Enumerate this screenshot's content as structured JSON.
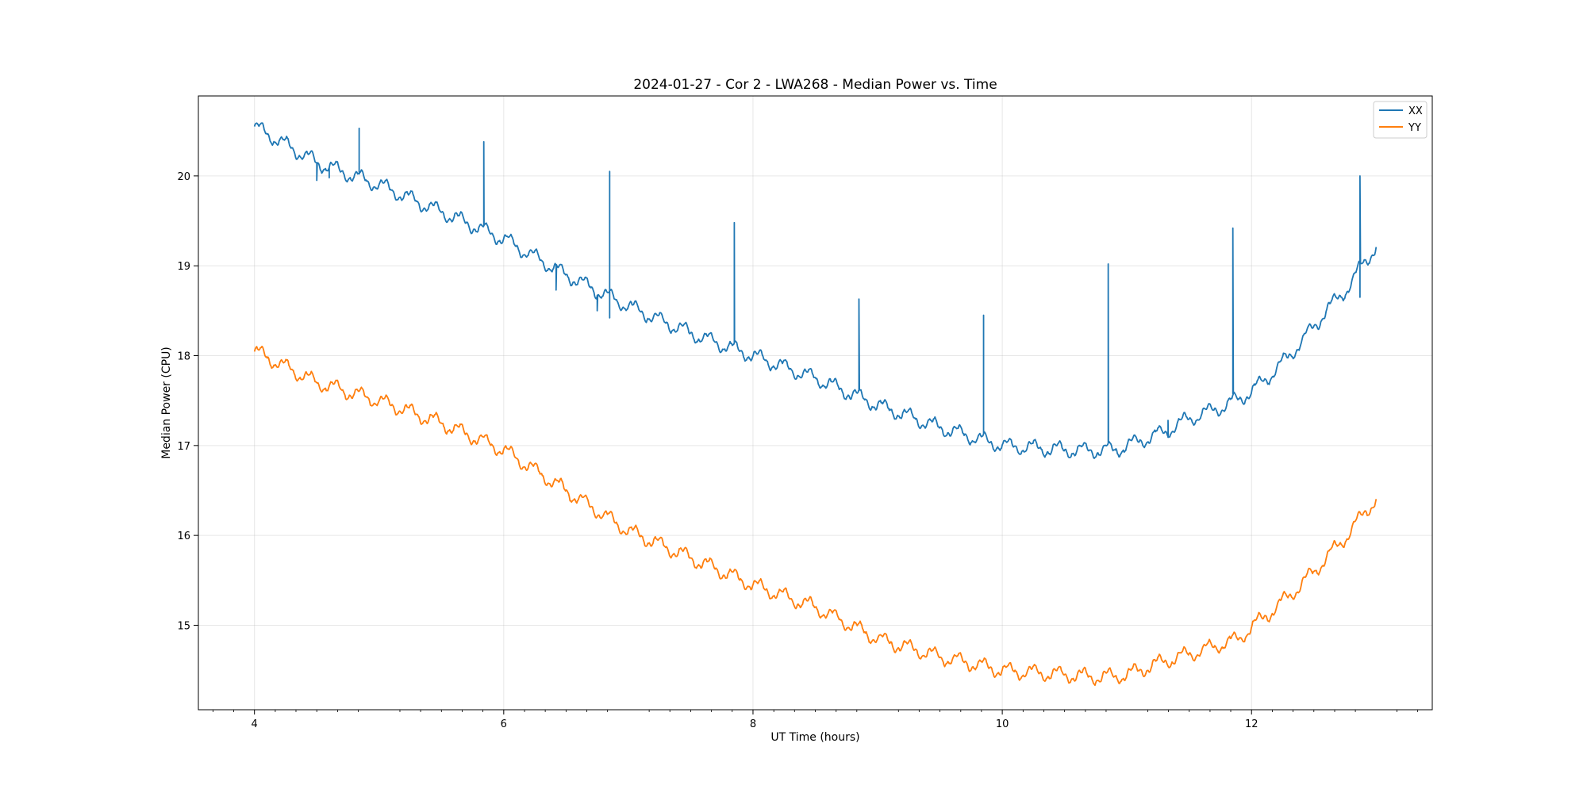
{
  "chart_data": {
    "type": "line",
    "title": "2024-01-27 - Cor 2 - LWA268 - Median Power vs. Time",
    "xlabel": "UT Time (hours)",
    "ylabel": "Median Power (CPU)",
    "xlim": [
      3.55,
      13.45
    ],
    "ylim": [
      14.06,
      20.89
    ],
    "xticks": [
      4,
      6,
      8,
      10,
      12
    ],
    "xticks_minor": [
      3.667,
      3.833,
      4.167,
      4.333,
      4.5,
      4.667,
      4.833,
      5.167,
      5.333,
      5.5,
      5.667,
      5.833,
      6.167,
      6.333,
      6.5,
      6.667,
      6.833,
      7.167,
      7.333,
      7.5,
      7.667,
      7.833,
      8.167,
      8.333,
      8.5,
      8.667,
      8.833,
      9.167,
      9.333,
      9.5,
      9.667,
      9.833,
      10.167,
      10.333,
      10.5,
      10.667,
      10.833,
      11.167,
      11.333,
      11.5,
      11.667,
      11.833,
      12.167,
      12.333,
      12.5,
      12.667,
      12.833,
      13.167,
      13.333
    ],
    "yticks": [
      15,
      16,
      17,
      18,
      19,
      20
    ],
    "grid": true,
    "legend_position": "top-right",
    "series": [
      {
        "name": "XX",
        "color": "#1f77b4",
        "x": [
          4.0,
          4.5,
          5.0,
          5.5,
          6.0,
          6.5,
          7.0,
          7.5,
          8.0,
          8.5,
          9.0,
          9.5,
          10.0,
          10.5,
          10.9,
          11.3,
          11.5,
          11.8,
          12.0,
          12.2,
          12.4,
          12.6,
          12.8,
          12.9,
          13.0
        ],
        "y": [
          20.55,
          20.15,
          19.9,
          19.6,
          19.3,
          18.9,
          18.55,
          18.25,
          18.0,
          17.75,
          17.45,
          17.2,
          17.0,
          16.95,
          16.95,
          17.15,
          17.3,
          17.45,
          17.6,
          17.85,
          18.15,
          18.5,
          18.8,
          19.05,
          19.2
        ],
        "spikes": [
          {
            "x": 4.5,
            "y": 19.95
          },
          {
            "x": 4.6,
            "y": 19.98
          },
          {
            "x": 4.84,
            "y": 20.53
          },
          {
            "x": 5.84,
            "y": 20.38
          },
          {
            "x": 6.42,
            "y": 18.73
          },
          {
            "x": 6.75,
            "y": 18.5
          },
          {
            "x": 6.85,
            "y": 20.05
          },
          {
            "x": 6.85,
            "y": 18.42
          },
          {
            "x": 7.85,
            "y": 19.48
          },
          {
            "x": 8.85,
            "y": 18.63
          },
          {
            "x": 9.85,
            "y": 18.45
          },
          {
            "x": 10.85,
            "y": 19.02
          },
          {
            "x": 11.33,
            "y": 17.28
          },
          {
            "x": 11.85,
            "y": 19.42
          },
          {
            "x": 12.87,
            "y": 20.0
          },
          {
            "x": 12.87,
            "y": 18.65
          }
        ]
      },
      {
        "name": "YY",
        "color": "#ff7f0e",
        "x": [
          4.0,
          4.5,
          5.0,
          5.5,
          6.0,
          6.5,
          7.0,
          7.5,
          8.0,
          8.5,
          9.0,
          9.5,
          10.0,
          10.5,
          10.8,
          11.0,
          11.3,
          11.6,
          11.9,
          12.0,
          12.2,
          12.4,
          12.6,
          12.8,
          12.9,
          13.0
        ],
        "y": [
          18.05,
          17.7,
          17.5,
          17.25,
          16.95,
          16.5,
          16.05,
          15.75,
          15.45,
          15.2,
          14.85,
          14.65,
          14.5,
          14.45,
          14.42,
          14.45,
          14.6,
          14.72,
          14.85,
          14.98,
          15.2,
          15.45,
          15.75,
          16.05,
          16.25,
          16.4
        ]
      }
    ]
  }
}
